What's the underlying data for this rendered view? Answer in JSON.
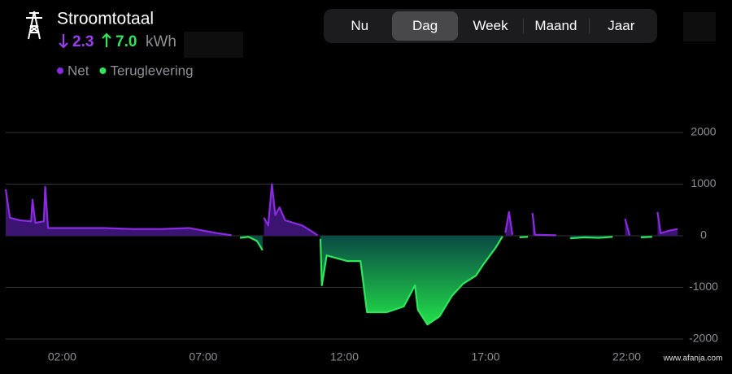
{
  "header": {
    "title": "Stroomtotaal",
    "import": "2.3",
    "export": "7.0",
    "unit": "kWh"
  },
  "tabs": {
    "items": [
      "Nu",
      "Dag",
      "Week",
      "Maand",
      "Jaar"
    ],
    "selected": 1
  },
  "watermark": "www.afanja.com",
  "chart_data": {
    "type": "area",
    "x": [
      0,
      0.15,
      0.5,
      0.9,
      0.95,
      1.05,
      1.35,
      1.4,
      1.5,
      2.5,
      3.5,
      4.5,
      5.5,
      6.5,
      7,
      7.5,
      8,
      8.3,
      8.6,
      8.9,
      9.1,
      9.15,
      9.3,
      9.43,
      9.55,
      9.7,
      9.9,
      10.2,
      10.5,
      10.8,
      11.05,
      11.15,
      11.2,
      11.37,
      12.1,
      12.57,
      12.8,
      13.5,
      14.1,
      14.5,
      14.6,
      14.94,
      15.37,
      15.8,
      16.2,
      16.66,
      16.94,
      17.37,
      17.6,
      17.7,
      17.83,
      17.95,
      18.2,
      18.5,
      18.66,
      18.75,
      19.5,
      20,
      20.5,
      21,
      21.5,
      21.94,
      22.1,
      22.5,
      22.9,
      23.09,
      23.2,
      23.5,
      23.8
    ],
    "series": [
      {
        "name": "Net",
        "color": "#8a2be2",
        "fill": "#3a1470",
        "values": [
          900,
          350,
          300,
          280,
          700,
          250,
          280,
          950,
          150,
          150,
          150,
          130,
          130,
          150,
          100,
          50,
          10,
          null,
          null,
          null,
          null,
          350,
          200,
          1000,
          400,
          550,
          300,
          250,
          200,
          100,
          10,
          null,
          null,
          null,
          null,
          null,
          null,
          null,
          null,
          null,
          null,
          null,
          null,
          null,
          null,
          null,
          null,
          null,
          null,
          60,
          460,
          20,
          null,
          null,
          440,
          20,
          10,
          null,
          null,
          null,
          null,
          330,
          10,
          null,
          null,
          460,
          50,
          100,
          130
        ]
      },
      {
        "name": "Teruglevering",
        "color": "#2ee65a",
        "fill": "#1fd043",
        "values": [
          null,
          null,
          null,
          null,
          null,
          null,
          null,
          null,
          null,
          null,
          null,
          null,
          null,
          null,
          null,
          null,
          null,
          -40,
          -20,
          -100,
          -280,
          null,
          null,
          null,
          null,
          null,
          null,
          null,
          null,
          null,
          null,
          -60,
          -960,
          -380,
          -490,
          -490,
          -1480,
          -1480,
          -1370,
          -960,
          -1430,
          -1720,
          -1560,
          -1170,
          -930,
          -770,
          -540,
          -220,
          -10,
          null,
          null,
          null,
          -30,
          -20,
          null,
          null,
          null,
          -50,
          -30,
          -40,
          -20,
          null,
          null,
          -30,
          -20,
          null,
          null,
          null,
          null
        ]
      }
    ],
    "xlim": [
      0,
      24
    ],
    "xticks": [
      {
        "value": 2,
        "label": "02:00"
      },
      {
        "value": 7,
        "label": "07:00"
      },
      {
        "value": 12,
        "label": "12:00"
      },
      {
        "value": 17,
        "label": "17:00"
      },
      {
        "value": 22,
        "label": "22:00"
      }
    ],
    "ylim": [
      -2000,
      2000
    ],
    "yticks": [
      2000,
      1000,
      0,
      -1000,
      -2000
    ],
    "grid": true
  }
}
